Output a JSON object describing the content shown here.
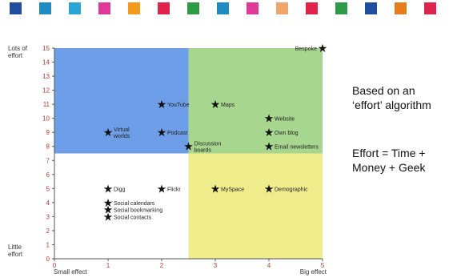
{
  "side_notes": {
    "line1": "Based on an",
    "line2": "‘effort’ algorithm",
    "line3": "Effort = Time +",
    "line4": "Money + Geek"
  },
  "decor_tiles": [
    "#1f4e9e",
    "#1e8bc3",
    "#2aa6d5",
    "#e0399a",
    "#f39a1c",
    "#e0234a",
    "#2e9c46",
    "#1e8bc3",
    "#e0399a",
    "#f2a56b",
    "#e0234a",
    "#2e9c46",
    "#1f4e9e",
    "#e87b1c",
    "#e0234a"
  ],
  "chart_data": {
    "type": "scatter",
    "title": "",
    "xlabel": "",
    "ylabel": "",
    "xlim": [
      0,
      5
    ],
    "ylim": [
      0,
      15
    ],
    "x_ticks": [
      "0",
      "1",
      "2",
      "3",
      "4",
      "5"
    ],
    "y_ticks": [
      "0",
      "1",
      "2",
      "3",
      "4",
      "5",
      "6",
      "7",
      "8",
      "9",
      "10",
      "11",
      "12",
      "13",
      "14",
      "15"
    ],
    "x_axis_end_labels": {
      "left": "Small effect",
      "right": "Big effect"
    },
    "y_axis_end_labels": {
      "top": [
        "Lots of",
        "effort"
      ],
      "bottom": [
        "Little",
        "effort"
      ]
    },
    "quadrants": [
      {
        "x": [
          0,
          2.5
        ],
        "y": [
          7.5,
          15
        ],
        "color": "#6f9ee8"
      },
      {
        "x": [
          2.5,
          5
        ],
        "y": [
          7.5,
          15
        ],
        "color": "#a7d68f"
      },
      {
        "x": [
          0,
          2.5
        ],
        "y": [
          0,
          7.5
        ],
        "color": "#ffffff"
      },
      {
        "x": [
          2.5,
          5
        ],
        "y": [
          0,
          7.5
        ],
        "color": "#f0ee8c"
      }
    ],
    "points": [
      {
        "x": 5,
        "y": 15,
        "label": [
          "Bespoke"
        ],
        "label_side": "left"
      },
      {
        "x": 2,
        "y": 11,
        "label": [
          "YouTube"
        ],
        "label_side": "right"
      },
      {
        "x": 3,
        "y": 11,
        "label": [
          "Maps"
        ],
        "label_side": "right"
      },
      {
        "x": 4,
        "y": 10,
        "label": [
          "Website"
        ],
        "label_side": "right"
      },
      {
        "x": 1,
        "y": 9,
        "label": [
          "Virtual",
          "worlds"
        ],
        "label_side": "right"
      },
      {
        "x": 2,
        "y": 9,
        "label": [
          "Podcast"
        ],
        "label_side": "right"
      },
      {
        "x": 4,
        "y": 9,
        "label": [
          "Own blog"
        ],
        "label_side": "right"
      },
      {
        "x": 2.5,
        "y": 8,
        "label": [
          "Discussion",
          "boards"
        ],
        "label_side": "right"
      },
      {
        "x": 4,
        "y": 8,
        "label": [
          "Email newsletters"
        ],
        "label_side": "right"
      },
      {
        "x": 1,
        "y": 5,
        "label": [
          "Digg"
        ],
        "label_side": "right"
      },
      {
        "x": 2,
        "y": 5,
        "label": [
          "Flickr"
        ],
        "label_side": "right"
      },
      {
        "x": 3,
        "y": 5,
        "label": [
          "MySpace"
        ],
        "label_side": "right"
      },
      {
        "x": 4,
        "y": 5,
        "label": [
          "Demographic"
        ],
        "label_side": "right"
      },
      {
        "x": 1,
        "y": 4,
        "label": [
          "Social calendars"
        ],
        "label_side": "right"
      },
      {
        "x": 1,
        "y": 3.5,
        "label": [
          "Social bookmarking"
        ],
        "label_side": "right"
      },
      {
        "x": 1,
        "y": 3,
        "label": [
          "Social contacts"
        ],
        "label_side": "right"
      }
    ]
  }
}
